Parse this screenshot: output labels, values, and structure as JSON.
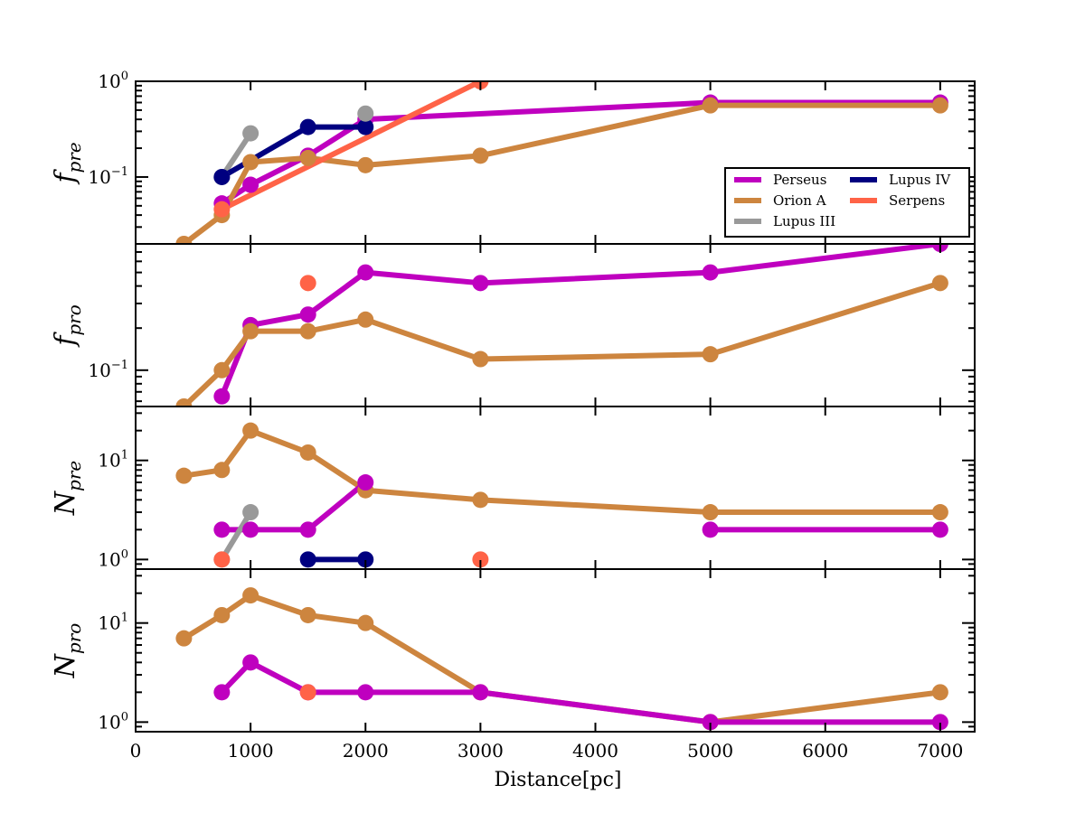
{
  "chart_data": {
    "type": "line",
    "xlabel": "Distance[pc]",
    "xlim": [
      0,
      7300
    ],
    "xticks": [
      0,
      1000,
      2000,
      3000,
      4000,
      5000,
      6000,
      7000
    ],
    "xtick_labels": [
      "0",
      "1000",
      "2000",
      "3000",
      "4000",
      "5000",
      "6000",
      "7000"
    ],
    "legend": {
      "placement": "right",
      "entries": [
        {
          "name": "Perseus",
          "color": "#bf00bf"
        },
        {
          "name": "Lupus IV",
          "color": "#000080"
        },
        {
          "name": "Orion A",
          "color": "#cd853f"
        },
        {
          "name": "Serpens",
          "color": "#ff6347"
        },
        {
          "name": "Lupus III",
          "color": "#999999"
        }
      ]
    },
    "panels": [
      {
        "id": "f_pre",
        "ylabel_main": "f",
        "ylabel_sub": "pre",
        "yscale": "log",
        "ylim": [
          0.02,
          1.0
        ],
        "yticks": [
          {
            "value": 1.0,
            "base": "10",
            "exp": "0"
          },
          {
            "value": 0.1,
            "base": "10",
            "exp": "−1"
          }
        ],
        "series": [
          {
            "name": "Perseus",
            "color": "#bf00bf",
            "x": [
              750,
              1000,
              1500,
              2000,
              5000,
              7000
            ],
            "y": [
              0.053,
              0.083,
              0.167,
              0.4,
              0.6,
              0.6
            ]
          },
          {
            "name": "Lupus III",
            "color": "#999999",
            "x": [
              750,
              1000
            ],
            "y": [
              0.1,
              0.286
            ]
          },
          {
            "name": "Lupus IV",
            "color": "#000080",
            "x": [
              750,
              1500,
              2000
            ],
            "y": [
              0.1,
              0.333,
              0.333
            ]
          },
          {
            "name": "Orion A",
            "color": "#cd853f",
            "x": [
              420,
              750,
              1000,
              1500,
              2000,
              3000,
              5000,
              7000
            ],
            "y": [
              0.02,
              0.04,
              0.143,
              0.158,
              0.133,
              0.167,
              0.56,
              0.56
            ]
          },
          {
            "name": "Serpens",
            "color": "#ff6347",
            "x": [
              750,
              3000
            ],
            "y": [
              0.046,
              1.0
            ]
          },
          {
            "name": "Lupus III",
            "color": "#999999",
            "x": [
              2000
            ],
            "y": [
              0.46
            ],
            "markers_only": true
          }
        ]
      },
      {
        "id": "f_pro",
        "ylabel_main": "f",
        "ylabel_sub": "pro",
        "yscale": "log",
        "ylim": [
          0.055,
          0.8
        ],
        "yticks": [
          {
            "value": 0.1,
            "base": "10",
            "exp": "−1"
          }
        ],
        "series": [
          {
            "name": "Perseus",
            "color": "#bf00bf",
            "x": [
              750,
              1000,
              1500,
              2000,
              3000,
              5000,
              7000
            ],
            "y": [
              0.065,
              0.21,
              0.25,
              0.5,
              0.42,
              0.5,
              0.8
            ]
          },
          {
            "name": "Orion A",
            "color": "#cd853f",
            "x": [
              420,
              750,
              1000,
              1500,
              2000,
              3000,
              5000,
              7000
            ],
            "y": [
              0.055,
              0.1,
              0.19,
              0.19,
              0.23,
              0.12,
              0.13,
              0.42
            ]
          },
          {
            "name": "Serpens",
            "color": "#ff6347",
            "x": [
              1500
            ],
            "y": [
              0.42
            ],
            "markers_only": true
          }
        ]
      },
      {
        "id": "N_pre",
        "ylabel_main": "N",
        "ylabel_sub": "pre",
        "yscale": "log",
        "ylim": [
          0.8,
          35
        ],
        "yticks": [
          {
            "value": 10,
            "base": "10",
            "exp": "1"
          },
          {
            "value": 1,
            "base": "10",
            "exp": "0"
          }
        ],
        "series": [
          {
            "name": "Orion A",
            "color": "#cd853f",
            "x": [
              420,
              750,
              1000,
              1500,
              2000,
              3000,
              5000,
              7000
            ],
            "y": [
              7,
              8,
              20,
              12,
              5,
              4,
              3,
              3
            ]
          },
          {
            "name": "Perseus",
            "color": "#bf00bf",
            "x": [
              750,
              1000,
              1500,
              2000
            ],
            "y": [
              2,
              2,
              2,
              6
            ]
          },
          {
            "name": "Perseus",
            "color": "#bf00bf",
            "x": [
              5000,
              7000
            ],
            "y": [
              2,
              2
            ]
          },
          {
            "name": "Lupus III",
            "color": "#999999",
            "x": [
              750,
              1000
            ],
            "y": [
              1,
              3
            ]
          },
          {
            "name": "Lupus IV",
            "color": "#000080",
            "x": [
              1500,
              2000
            ],
            "y": [
              1,
              1
            ]
          },
          {
            "name": "Serpens",
            "color": "#ff6347",
            "x": [
              750,
              3000
            ],
            "y": [
              1,
              1
            ],
            "markers_only": true
          }
        ]
      },
      {
        "id": "N_pro",
        "ylabel_main": "N",
        "ylabel_sub": "pro",
        "yscale": "log",
        "ylim": [
          0.8,
          35
        ],
        "yticks": [
          {
            "value": 10,
            "base": "10",
            "exp": "1"
          },
          {
            "value": 1,
            "base": "10",
            "exp": "0"
          }
        ],
        "series": [
          {
            "name": "Orion A",
            "color": "#cd853f",
            "x": [
              420,
              750,
              1000,
              1500,
              2000,
              3000,
              5000,
              7000
            ],
            "y": [
              7,
              12,
              19,
              12,
              10,
              2,
              1,
              2
            ]
          },
          {
            "name": "Perseus",
            "color": "#bf00bf",
            "x": [
              750,
              1000,
              1500,
              2000,
              3000,
              5000,
              7000
            ],
            "y": [
              2,
              4,
              2,
              2,
              2,
              1,
              1
            ]
          },
          {
            "name": "Serpens",
            "color": "#ff6347",
            "x": [
              1500
            ],
            "y": [
              2
            ],
            "markers_only": true
          }
        ]
      }
    ]
  }
}
